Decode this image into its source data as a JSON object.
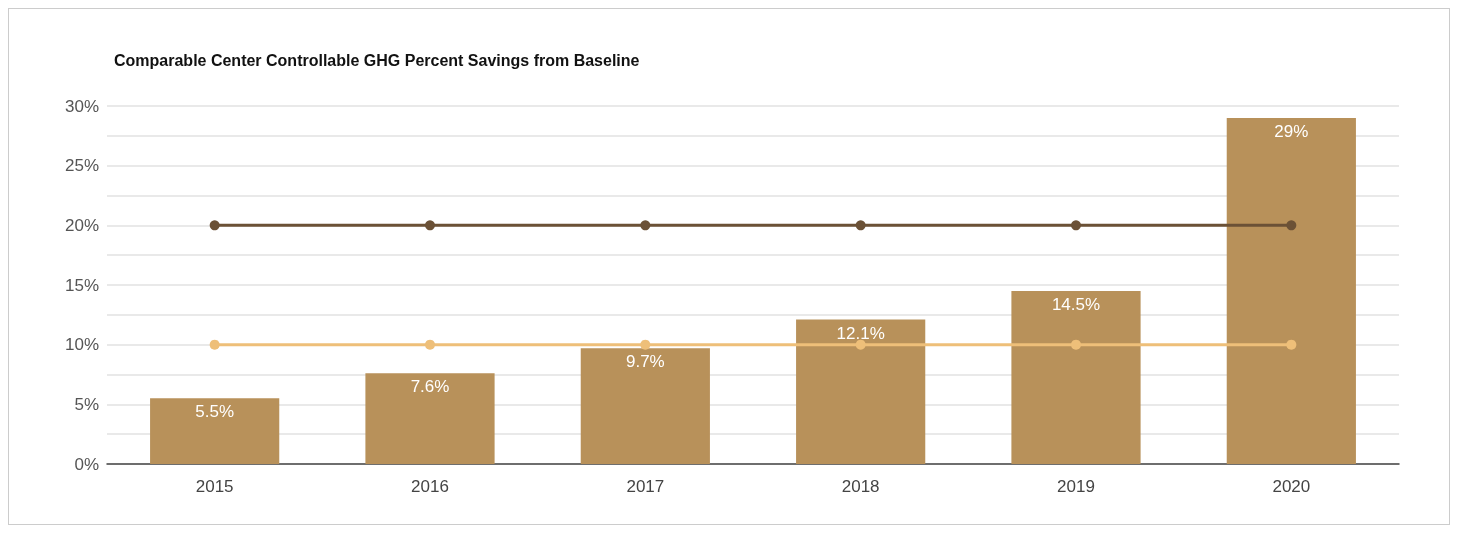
{
  "chart_data": {
    "type": "bar",
    "title": "Comparable Center Controllable GHG Percent Savings from Baseline",
    "categories": [
      "2015",
      "2016",
      "2017",
      "2018",
      "2019",
      "2020"
    ],
    "series": [
      {
        "color": "#b8915a",
        "values": [
          5.5,
          7.6,
          9.7,
          12.1,
          14.5,
          29
        ],
        "value_labels": [
          "5.5%",
          "7.6%",
          "9.7%",
          "12.1%",
          "14.5%",
          "29%"
        ]
      },
      {
        "type": "line",
        "color": "#6b5136",
        "values": [
          20,
          20,
          20,
          20,
          20,
          20
        ]
      },
      {
        "type": "line",
        "color": "#eebf79",
        "values": [
          10,
          10,
          10,
          10,
          10,
          10
        ]
      }
    ],
    "ylim": [
      0,
      30
    ],
    "yticks": [
      {
        "value": 0,
        "label": "0%"
      },
      {
        "value": 2.5,
        "label": null
      },
      {
        "value": 5,
        "label": "5%"
      },
      {
        "value": 7.5,
        "label": null
      },
      {
        "value": 10,
        "label": "10%"
      },
      {
        "value": 12.5,
        "label": null
      },
      {
        "value": 15,
        "label": "15%"
      },
      {
        "value": 17.5,
        "label": null
      },
      {
        "value": 20,
        "label": "20%"
      },
      {
        "value": 22.5,
        "label": null
      },
      {
        "value": 25,
        "label": "25%"
      },
      {
        "value": 27.5,
        "label": null
      },
      {
        "value": 30,
        "label": "30%"
      }
    ],
    "grid": "y",
    "marker": "circle"
  }
}
